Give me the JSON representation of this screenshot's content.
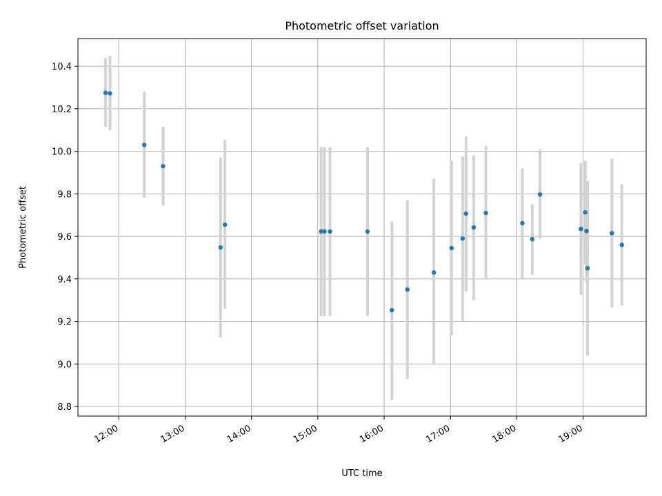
{
  "chart_data": {
    "type": "scatter",
    "title": "Photometric offset variation",
    "xlabel": "UTC time",
    "ylabel": "Photometric offset",
    "xlim": [
      "11:23",
      "19:57"
    ],
    "ylim": [
      8.755,
      10.53
    ],
    "x_ticks": [
      "12:00",
      "13:00",
      "14:00",
      "15:00",
      "16:00",
      "17:00",
      "18:00",
      "19:00"
    ],
    "y_ticks": [
      8.8,
      9.0,
      9.2,
      9.4,
      9.6,
      9.8,
      10.0,
      10.2,
      10.4
    ],
    "y_tick_labels": [
      "8.8",
      "9.0",
      "9.2",
      "9.4",
      "9.6",
      "9.8",
      "10.0",
      "10.2",
      "10.4"
    ],
    "grid": true,
    "error_bar_color": "#d3d3d3",
    "marker_color": "#1f77b4",
    "points": [
      {
        "time": "11:48",
        "value": 10.275,
        "err_low": 10.115,
        "err_high": 10.44
      },
      {
        "time": "11:52",
        "value": 10.272,
        "err_low": 10.1,
        "err_high": 10.45
      },
      {
        "time": "12:23",
        "value": 10.03,
        "err_low": 9.78,
        "err_high": 10.28
      },
      {
        "time": "12:40",
        "value": 9.93,
        "err_low": 9.745,
        "err_high": 10.115
      },
      {
        "time": "13:32",
        "value": 9.548,
        "err_low": 9.125,
        "err_high": 9.97
      },
      {
        "time": "13:36",
        "value": 9.655,
        "err_low": 9.26,
        "err_high": 10.055
      },
      {
        "time": "15:03",
        "value": 9.623,
        "err_low": 9.225,
        "err_high": 10.02
      },
      {
        "time": "15:06",
        "value": 9.623,
        "err_low": 9.225,
        "err_high": 10.02
      },
      {
        "time": "15:11",
        "value": 9.623,
        "err_low": 9.225,
        "err_high": 10.02
      },
      {
        "time": "15:45",
        "value": 9.623,
        "err_low": 9.225,
        "err_high": 10.02
      },
      {
        "time": "16:07",
        "value": 9.253,
        "err_low": 8.83,
        "err_high": 9.67
      },
      {
        "time": "16:21",
        "value": 9.35,
        "err_low": 8.93,
        "err_high": 9.77
      },
      {
        "time": "16:45",
        "value": 9.43,
        "err_low": 8.995,
        "err_high": 9.87
      },
      {
        "time": "17:01",
        "value": 9.545,
        "err_low": 9.135,
        "err_high": 9.955
      },
      {
        "time": "17:11",
        "value": 9.59,
        "err_low": 9.2,
        "err_high": 9.975
      },
      {
        "time": "17:14",
        "value": 9.707,
        "err_low": 9.34,
        "err_high": 10.07
      },
      {
        "time": "17:21",
        "value": 9.642,
        "err_low": 9.3,
        "err_high": 9.98
      },
      {
        "time": "17:32",
        "value": 9.71,
        "err_low": 9.4,
        "err_high": 10.025
      },
      {
        "time": "18:05",
        "value": 9.662,
        "err_low": 9.4,
        "err_high": 9.92
      },
      {
        "time": "18:14",
        "value": 9.587,
        "err_low": 9.42,
        "err_high": 9.75
      },
      {
        "time": "18:21",
        "value": 9.797,
        "err_low": 9.59,
        "err_high": 10.01
      },
      {
        "time": "18:58",
        "value": 9.635,
        "err_low": 9.325,
        "err_high": 9.945
      },
      {
        "time": "19:02",
        "value": 9.713,
        "err_low": 9.47,
        "err_high": 9.955
      },
      {
        "time": "19:03",
        "value": 9.625,
        "err_low": 9.385,
        "err_high": 9.86
      },
      {
        "time": "19:04",
        "value": 9.45,
        "err_low": 9.04,
        "err_high": 9.86
      },
      {
        "time": "19:26",
        "value": 9.615,
        "err_low": 9.265,
        "err_high": 9.965
      },
      {
        "time": "19:35",
        "value": 9.56,
        "err_low": 9.275,
        "err_high": 9.845
      }
    ]
  }
}
